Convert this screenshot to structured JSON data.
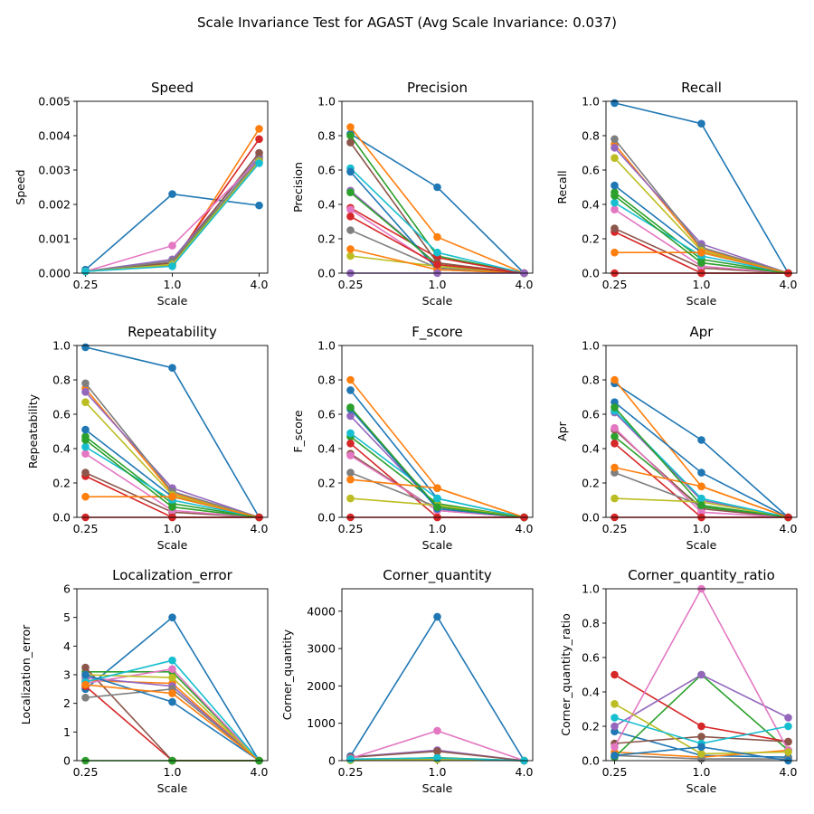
{
  "suptitle": "Scale Invariance Test for AGAST (Avg Scale Invariance: 0.037)",
  "colors": [
    "#1f77b4",
    "#ff7f0e",
    "#2ca02c",
    "#d62728",
    "#9467bd",
    "#8c564b",
    "#e377c2",
    "#7f7f7f",
    "#bcbd22",
    "#17becf"
  ],
  "chart_data": [
    {
      "type": "line",
      "title": "Speed",
      "xlabel": "Scale",
      "ylabel": "Speed",
      "x": [
        "0.25",
        "1.0",
        "4.0"
      ],
      "ylim": [
        0,
        0.005
      ],
      "yticks": [
        "0.000",
        "0.001",
        "0.002",
        "0.003",
        "0.004",
        "0.005"
      ],
      "series": [
        {
          "values": [
            0.0001,
            0.0023,
            0.00197
          ]
        },
        {
          "values": [
            5e-05,
            0.00022,
            0.0042
          ]
        },
        {
          "values": [
            5e-05,
            0.00025,
            0.00335
          ]
        },
        {
          "values": [
            5e-05,
            0.0003,
            0.0039
          ]
        },
        {
          "values": [
            5e-05,
            0.0004,
            0.0034
          ]
        },
        {
          "values": [
            5e-05,
            0.0003,
            0.0035
          ]
        },
        {
          "values": [
            5e-05,
            0.0008,
            0.0033
          ]
        },
        {
          "values": [
            5e-05,
            0.00035,
            0.0033
          ]
        },
        {
          "values": [
            5e-05,
            0.00025,
            0.00325
          ]
        },
        {
          "values": [
            5e-05,
            0.0002,
            0.0032
          ]
        }
      ]
    },
    {
      "type": "line",
      "title": "Precision",
      "xlabel": "Scale",
      "ylabel": "Precision",
      "x": [
        "0.25",
        "1.0",
        "4.0"
      ],
      "ylim": [
        0,
        1.0
      ],
      "yticks": [
        "0.0",
        "0.2",
        "0.4",
        "0.6",
        "0.8",
        "1.0"
      ],
      "series": [
        {
          "values": [
            0.81,
            0.5,
            0
          ]
        },
        {
          "values": [
            0.85,
            0.21,
            0
          ]
        },
        {
          "values": [
            0.8,
            0.1,
            0
          ]
        },
        {
          "values": [
            0.38,
            0.09,
            0
          ]
        },
        {
          "values": [
            0.48,
            0.05,
            0
          ]
        },
        {
          "values": [
            0.76,
            0.06,
            0
          ]
        },
        {
          "values": [
            0.37,
            0.04,
            0
          ]
        },
        {
          "values": [
            0.25,
            0.03,
            0
          ]
        },
        {
          "values": [
            0.1,
            0.04,
            0
          ]
        },
        {
          "values": [
            0.61,
            0.12,
            0
          ]
        },
        {
          "values": [
            0.59,
            0.02,
            0
          ]
        },
        {
          "values": [
            0.14,
            0.02,
            0
          ]
        },
        {
          "values": [
            0.47,
            0.05,
            0
          ]
        },
        {
          "values": [
            0.33,
            0.05,
            0
          ]
        },
        {
          "values": [
            0.0,
            0.0,
            0
          ]
        }
      ]
    },
    {
      "type": "line",
      "title": "Recall",
      "xlabel": "Scale",
      "ylabel": "Recall",
      "x": [
        "0.25",
        "1.0",
        "4.0"
      ],
      "ylim": [
        0,
        1.0
      ],
      "yticks": [
        "0.0",
        "0.2",
        "0.4",
        "0.6",
        "0.8",
        "1.0"
      ],
      "series": [
        {
          "values": [
            0.99,
            0.87,
            0
          ]
        },
        {
          "values": [
            0.75,
            0.14,
            0
          ]
        },
        {
          "values": [
            0.47,
            0.08,
            0
          ]
        },
        {
          "values": [
            0.24,
            0.0,
            0
          ]
        },
        {
          "values": [
            0.73,
            0.17,
            0
          ]
        },
        {
          "values": [
            0.26,
            0.03,
            0
          ]
        },
        {
          "values": [
            0.37,
            0.04,
            0
          ]
        },
        {
          "values": [
            0.78,
            0.15,
            0
          ]
        },
        {
          "values": [
            0.67,
            0.13,
            0
          ]
        },
        {
          "values": [
            0.41,
            0.1,
            0
          ]
        },
        {
          "values": [
            0.51,
            0.12,
            0
          ]
        },
        {
          "values": [
            0.12,
            0.12,
            0
          ]
        },
        {
          "values": [
            0.45,
            0.06,
            0
          ]
        },
        {
          "values": [
            0.0,
            0.0,
            0
          ]
        }
      ]
    },
    {
      "type": "line",
      "title": "Repeatability",
      "xlabel": "Scale",
      "ylabel": "Repeatability",
      "x": [
        "0.25",
        "1.0",
        "4.0"
      ],
      "ylim": [
        0,
        1.0
      ],
      "yticks": [
        "0.0",
        "0.2",
        "0.4",
        "0.6",
        "0.8",
        "1.0"
      ],
      "series": [
        {
          "values": [
            0.99,
            0.87,
            0
          ]
        },
        {
          "values": [
            0.75,
            0.14,
            0
          ]
        },
        {
          "values": [
            0.47,
            0.08,
            0
          ]
        },
        {
          "values": [
            0.24,
            0.0,
            0
          ]
        },
        {
          "values": [
            0.73,
            0.17,
            0
          ]
        },
        {
          "values": [
            0.26,
            0.03,
            0
          ]
        },
        {
          "values": [
            0.37,
            0.04,
            0
          ]
        },
        {
          "values": [
            0.78,
            0.15,
            0
          ]
        },
        {
          "values": [
            0.67,
            0.13,
            0
          ]
        },
        {
          "values": [
            0.41,
            0.1,
            0
          ]
        },
        {
          "values": [
            0.51,
            0.12,
            0
          ]
        },
        {
          "values": [
            0.12,
            0.12,
            0
          ]
        },
        {
          "values": [
            0.45,
            0.06,
            0
          ]
        },
        {
          "values": [
            0.0,
            0.0,
            0
          ]
        }
      ]
    },
    {
      "type": "line",
      "title": "F_score",
      "xlabel": "Scale",
      "ylabel": "F_score",
      "x": [
        "0.25",
        "1.0",
        "4.0"
      ],
      "ylim": [
        0,
        1.0
      ],
      "yticks": [
        "0.0",
        "0.2",
        "0.4",
        "0.6",
        "0.8",
        "1.0"
      ],
      "series": [
        {
          "values": [
            0.74,
            0.11,
            0
          ]
        },
        {
          "values": [
            0.8,
            0.17,
            0
          ]
        },
        {
          "values": [
            0.47,
            0.08,
            0
          ]
        },
        {
          "values": [
            0.43,
            0.0,
            0
          ]
        },
        {
          "values": [
            0.59,
            0.06,
            0
          ]
        },
        {
          "values": [
            0.37,
            0.04,
            0
          ]
        },
        {
          "values": [
            0.36,
            0.04,
            0
          ]
        },
        {
          "values": [
            0.26,
            0.06,
            0
          ]
        },
        {
          "values": [
            0.11,
            0.07,
            0
          ]
        },
        {
          "values": [
            0.49,
            0.11,
            0
          ]
        },
        {
          "values": [
            0.63,
            0.05,
            0
          ]
        },
        {
          "values": [
            0.22,
            0.17,
            0
          ]
        },
        {
          "values": [
            0.64,
            0.06,
            0
          ]
        },
        {
          "values": [
            0.0,
            0.0,
            0
          ]
        }
      ]
    },
    {
      "type": "line",
      "title": "Apr",
      "xlabel": "Scale",
      "ylabel": "Apr",
      "x": [
        "0.25",
        "1.0",
        "4.0"
      ],
      "ylim": [
        0,
        1.0
      ],
      "yticks": [
        "0.0",
        "0.2",
        "0.4",
        "0.6",
        "0.8",
        "1.0"
      ],
      "series": [
        {
          "values": [
            0.78,
            0.45,
            0
          ]
        },
        {
          "values": [
            0.8,
            0.18,
            0
          ]
        },
        {
          "values": [
            0.47,
            0.06,
            0
          ]
        },
        {
          "values": [
            0.43,
            0.0,
            0
          ]
        },
        {
          "values": [
            0.61,
            0.1,
            0
          ]
        },
        {
          "values": [
            0.51,
            0.05,
            0
          ]
        },
        {
          "values": [
            0.52,
            0.03,
            0
          ]
        },
        {
          "values": [
            0.26,
            0.07,
            0
          ]
        },
        {
          "values": [
            0.11,
            0.09,
            0
          ]
        },
        {
          "values": [
            0.62,
            0.11,
            0
          ]
        },
        {
          "values": [
            0.67,
            0.26,
            0
          ]
        },
        {
          "values": [
            0.29,
            0.18,
            0
          ]
        },
        {
          "values": [
            0.64,
            0.07,
            0
          ]
        },
        {
          "values": [
            0.0,
            0.0,
            0
          ]
        }
      ]
    },
    {
      "type": "line",
      "title": "Localization_error",
      "xlabel": "Scale",
      "ylabel": "Localization_error",
      "x": [
        "0.25",
        "1.0",
        "4.0"
      ],
      "ylim": [
        0,
        6
      ],
      "yticks": [
        "0",
        "1",
        "2",
        "3",
        "4",
        "5",
        "6"
      ],
      "series": [
        {
          "values": [
            2.5,
            5.0,
            0
          ]
        },
        {
          "values": [
            2.8,
            2.7,
            0
          ]
        },
        {
          "values": [
            3.1,
            3.1,
            0
          ]
        },
        {
          "values": [
            2.6,
            0.0,
            0
          ]
        },
        {
          "values": [
            2.9,
            2.6,
            0
          ]
        },
        {
          "values": [
            3.25,
            0.0,
            0
          ]
        },
        {
          "values": [
            2.7,
            3.2,
            0
          ]
        },
        {
          "values": [
            2.2,
            2.5,
            0
          ]
        },
        {
          "values": [
            3.0,
            2.9,
            0
          ]
        },
        {
          "values": [
            2.75,
            3.5,
            0
          ]
        },
        {
          "values": [
            3.0,
            2.05,
            0
          ]
        },
        {
          "values": [
            2.65,
            2.35,
            0
          ]
        },
        {
          "values": [
            0.0,
            0.0,
            0
          ]
        }
      ]
    },
    {
      "type": "line",
      "title": "Corner_quantity",
      "xlabel": "Scale",
      "ylabel": "Corner_quantity",
      "x": [
        "0.25",
        "1.0",
        "4.0"
      ],
      "ylim": [
        0,
        4600
      ],
      "yticks": [
        "0",
        "1000",
        "2000",
        "3000",
        "4000"
      ],
      "series": [
        {
          "values": [
            120,
            3850,
            0
          ]
        },
        {
          "values": [
            30,
            50,
            0
          ]
        },
        {
          "values": [
            20,
            80,
            0
          ]
        },
        {
          "values": [
            15,
            60,
            0
          ]
        },
        {
          "values": [
            100,
            280,
            0
          ]
        },
        {
          "values": [
            90,
            250,
            0
          ]
        },
        {
          "values": [
            60,
            800,
            0
          ]
        },
        {
          "values": [
            20,
            40,
            0
          ]
        },
        {
          "values": [
            10,
            30,
            0
          ]
        },
        {
          "values": [
            40,
            70,
            0
          ]
        }
      ]
    },
    {
      "type": "line",
      "title": "Corner_quantity_ratio",
      "xlabel": "Scale",
      "ylabel": "Corner_quantity_ratio",
      "x": [
        "0.25",
        "1.0",
        "4.0"
      ],
      "ylim": [
        0,
        1.0
      ],
      "yticks": [
        "0.0",
        "0.2",
        "0.4",
        "0.6",
        "0.8",
        "1.0"
      ],
      "series": [
        {
          "values": [
            0.17,
            0.03,
            0.02
          ]
        },
        {
          "values": [
            0.05,
            0.02,
            0.06
          ]
        },
        {
          "values": [
            0.02,
            0.5,
            0.06
          ]
        },
        {
          "values": [
            0.5,
            0.2,
            0.11
          ]
        },
        {
          "values": [
            0.2,
            0.5,
            0.25
          ]
        },
        {
          "values": [
            0.1,
            0.14,
            0.11
          ]
        },
        {
          "values": [
            0.08,
            1.0,
            0.06
          ]
        },
        {
          "values": [
            0.03,
            0.01,
            0.01
          ]
        },
        {
          "values": [
            0.33,
            0.04,
            0.05
          ]
        },
        {
          "values": [
            0.25,
            0.1,
            0.2
          ]
        },
        {
          "values": [
            0.03,
            0.08,
            0.0
          ]
        }
      ]
    }
  ]
}
